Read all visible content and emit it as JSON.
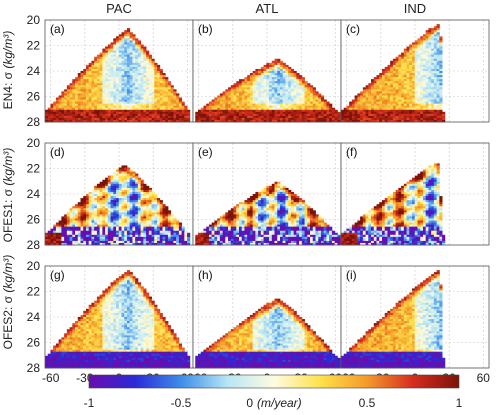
{
  "columns": [
    "PAC",
    "ATL",
    "IND"
  ],
  "row_labels": [
    {
      "prefix": "EN4: σ ",
      "unit": "(kg/m³)"
    },
    {
      "prefix": "OFES1: σ ",
      "unit": "(kg/m³)"
    },
    {
      "prefix": "OFES2: σ ",
      "unit": "(kg/m³)"
    }
  ],
  "panel_letters": [
    "(a)",
    "(b)",
    "(c)",
    "(d)",
    "(e)",
    "(f)",
    "(g)",
    "(h)",
    "(i)"
  ],
  "colorbar": {
    "ticks": [
      "-1",
      "-0.5",
      "0",
      "0.5",
      "1"
    ],
    "unit": "(m/year)",
    "range": [
      -1,
      1
    ],
    "colors": [
      "#6a0dad",
      "#2b2bd6",
      "#3f8ee8",
      "#b8e6f5",
      "#fffbe0",
      "#ffe14a",
      "#f49b2a",
      "#d62d1e",
      "#7a1408"
    ]
  },
  "chart_data": {
    "type": "heatmap",
    "layout": "3x3 panels (rows: EN4, OFES1, OFES2; columns: PAC, ATL, IND)",
    "xticks": [
      "-60",
      "-30",
      "0",
      "30",
      "60"
    ],
    "yticks": [
      "20",
      "22",
      "24",
      "26",
      "28"
    ],
    "xlim": [
      -65,
      65
    ],
    "ylim": [
      28,
      20
    ],
    "y_inverted": true,
    "grid": true,
    "value_range": [
      -1,
      1
    ],
    "panels": [
      {
        "letter": "(a)",
        "row": "EN4",
        "column": "PAC",
        "domain_lat": [
          -65,
          62
        ],
        "apex_lat": 8,
        "apex_sigma": 20.7
      },
      {
        "letter": "(b)",
        "row": "EN4",
        "column": "ATL",
        "domain_lat": [
          -63,
          62
        ],
        "apex_lat": 10,
        "apex_sigma": 23.0
      },
      {
        "letter": "(c)",
        "row": "EN4",
        "column": "IND",
        "domain_lat": [
          -65,
          25
        ],
        "apex_lat": 22,
        "apex_sigma": 20.2
      },
      {
        "letter": "(d)",
        "row": "OFES1",
        "column": "PAC",
        "domain_lat": [
          -65,
          62
        ],
        "apex_lat": 5,
        "apex_sigma": 21.7
      },
      {
        "letter": "(e)",
        "row": "OFES1",
        "column": "ATL",
        "domain_lat": [
          -63,
          62
        ],
        "apex_lat": 10,
        "apex_sigma": 23.0
      },
      {
        "letter": "(f)",
        "row": "OFES1",
        "column": "IND",
        "domain_lat": [
          -65,
          25
        ],
        "apex_lat": 20,
        "apex_sigma": 21.5
      },
      {
        "letter": "(g)",
        "row": "OFES2",
        "column": "PAC",
        "domain_lat": [
          -65,
          62
        ],
        "apex_lat": 8,
        "apex_sigma": 20.3
      },
      {
        "letter": "(h)",
        "row": "OFES2",
        "column": "ATL",
        "domain_lat": [
          -63,
          62
        ],
        "apex_lat": 10,
        "apex_sigma": 22.5
      },
      {
        "letter": "(i)",
        "row": "OFES2",
        "column": "IND",
        "domain_lat": [
          -65,
          25
        ],
        "apex_lat": 22,
        "apex_sigma": 20.3
      }
    ]
  }
}
